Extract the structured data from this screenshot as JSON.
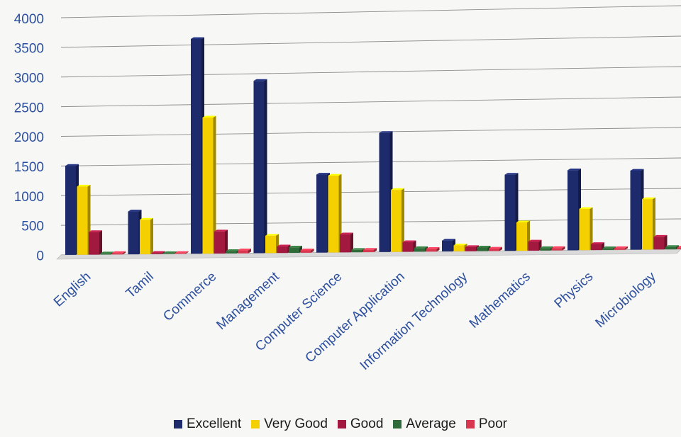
{
  "chart_data": {
    "type": "bar",
    "title": "",
    "xlabel": "",
    "ylabel": "",
    "ylim": [
      0,
      4000
    ],
    "yticks": [
      0,
      500,
      1000,
      1500,
      2000,
      2500,
      3000,
      3500,
      4000
    ],
    "grid": true,
    "legend_position": "bottom",
    "categories": [
      "English",
      "Tamil",
      "Commerce",
      "Management",
      "Computer Science",
      "Computer Application",
      "Information Technology",
      "Mathematics",
      "Physics",
      "Microbiology"
    ],
    "series": [
      {
        "name": "Excellent",
        "color": "#1d2a6b",
        "values": [
          1500,
          720,
          3600,
          2880,
          1300,
          1980,
          180,
          1260,
          1320,
          1300
        ]
      },
      {
        "name": "Very Good",
        "color": "#f5d000",
        "values": [
          1150,
          580,
          2280,
          290,
          1280,
          1030,
          100,
          470,
          680,
          830
        ]
      },
      {
        "name": "Good",
        "color": "#a3183f",
        "values": [
          380,
          20,
          370,
          110,
          300,
          160,
          70,
          150,
          100,
          210
        ]
      },
      {
        "name": "Average",
        "color": "#2f6b38",
        "values": [
          20,
          15,
          40,
          90,
          40,
          60,
          60,
          40,
          30,
          40
        ]
      },
      {
        "name": "Poor",
        "color": "#d9374f",
        "values": [
          25,
          15,
          50,
          40,
          40,
          45,
          40,
          40,
          30,
          30
        ]
      }
    ]
  }
}
